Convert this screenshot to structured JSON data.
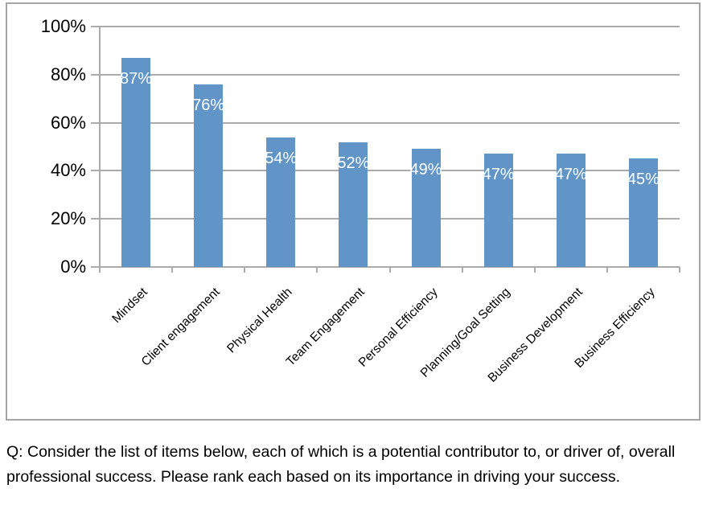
{
  "caption": {
    "line1": "Q: Consider the list of items below, each of which is a potential contributor to, or driver of, overall",
    "line2": "professional success. Please rank each based on its importance in driving your success."
  },
  "chart_data": {
    "type": "bar",
    "title": "",
    "xlabel": "",
    "ylabel": "",
    "categories": [
      "Mindset",
      "Client engagement",
      "Physical Health",
      "Team Engagement",
      "Personal Efficiency",
      "Planning/Goal Setting",
      "Business Development",
      "Business Efficiency"
    ],
    "values": [
      87,
      76,
      54,
      52,
      49,
      47,
      47,
      45
    ],
    "value_labels": [
      "87%",
      "76%",
      "54%",
      "52%",
      "49%",
      "47%",
      "47%",
      "45%"
    ],
    "y_ticks": [
      "100%",
      "80%",
      "60%",
      "40%",
      "20%",
      "0%"
    ],
    "ylim": [
      0,
      100
    ],
    "grid": true,
    "legend_position": "none",
    "x_label_rotation_deg": 45,
    "value_label_position": "inside-end",
    "colors": {
      "bar": "#6295C7",
      "value_label": "#FFFFFF",
      "gridline": "#ABABAB",
      "axis_line": "#ABABAB",
      "frame_border": "#A6A6A6",
      "axis_text": "#000000",
      "background": "#FFFFFF"
    }
  }
}
